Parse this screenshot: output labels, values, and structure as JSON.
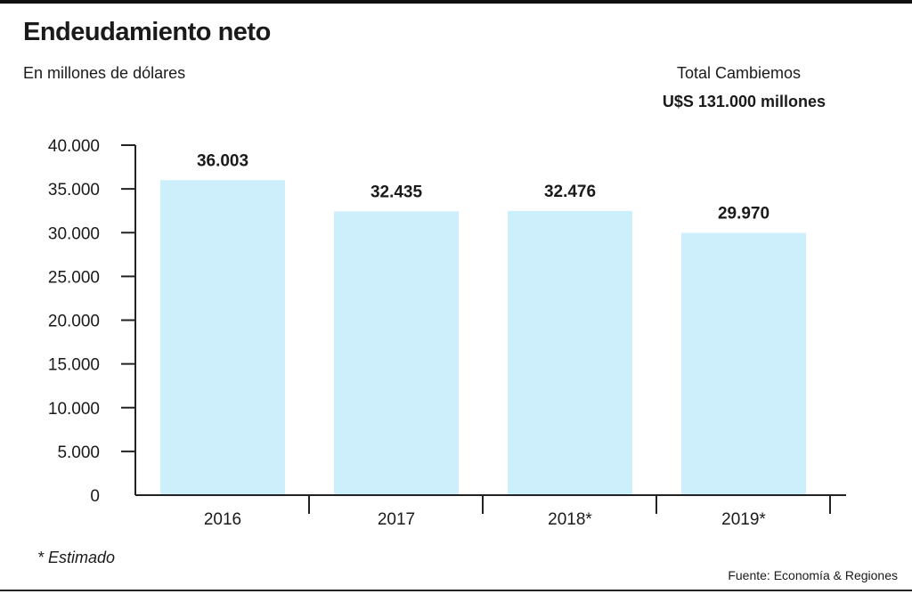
{
  "header": {
    "title": "Endeudamiento neto",
    "subtitle": "En millones de dólares",
    "total_label": "Total Cambiemos",
    "total_value": "U$S 131.000 millones"
  },
  "footer": {
    "footnote": "* Estimado",
    "source": "Fuente: Economía & Regiones"
  },
  "chart_data": {
    "type": "bar",
    "title": "Endeudamiento neto",
    "ylabel": "En millones de dólares",
    "xlabel": "",
    "categories": [
      "2016",
      "2017",
      "2018*",
      "2019*"
    ],
    "values": [
      36003,
      32435,
      32476,
      29970
    ],
    "value_labels": [
      "36.003",
      "32.435",
      "32.476",
      "29.970"
    ],
    "ylim": [
      0,
      40000
    ],
    "yticks": [
      0,
      5000,
      10000,
      15000,
      20000,
      25000,
      30000,
      35000,
      40000
    ],
    "ytick_labels": [
      "0",
      "5.000",
      "10.000",
      "15.000",
      "20.000",
      "25.000",
      "30.000",
      "35.000",
      "40.000"
    ],
    "bar_color": "#cdeffb",
    "axis_color": "#222222",
    "grid": false,
    "legend": "none"
  }
}
